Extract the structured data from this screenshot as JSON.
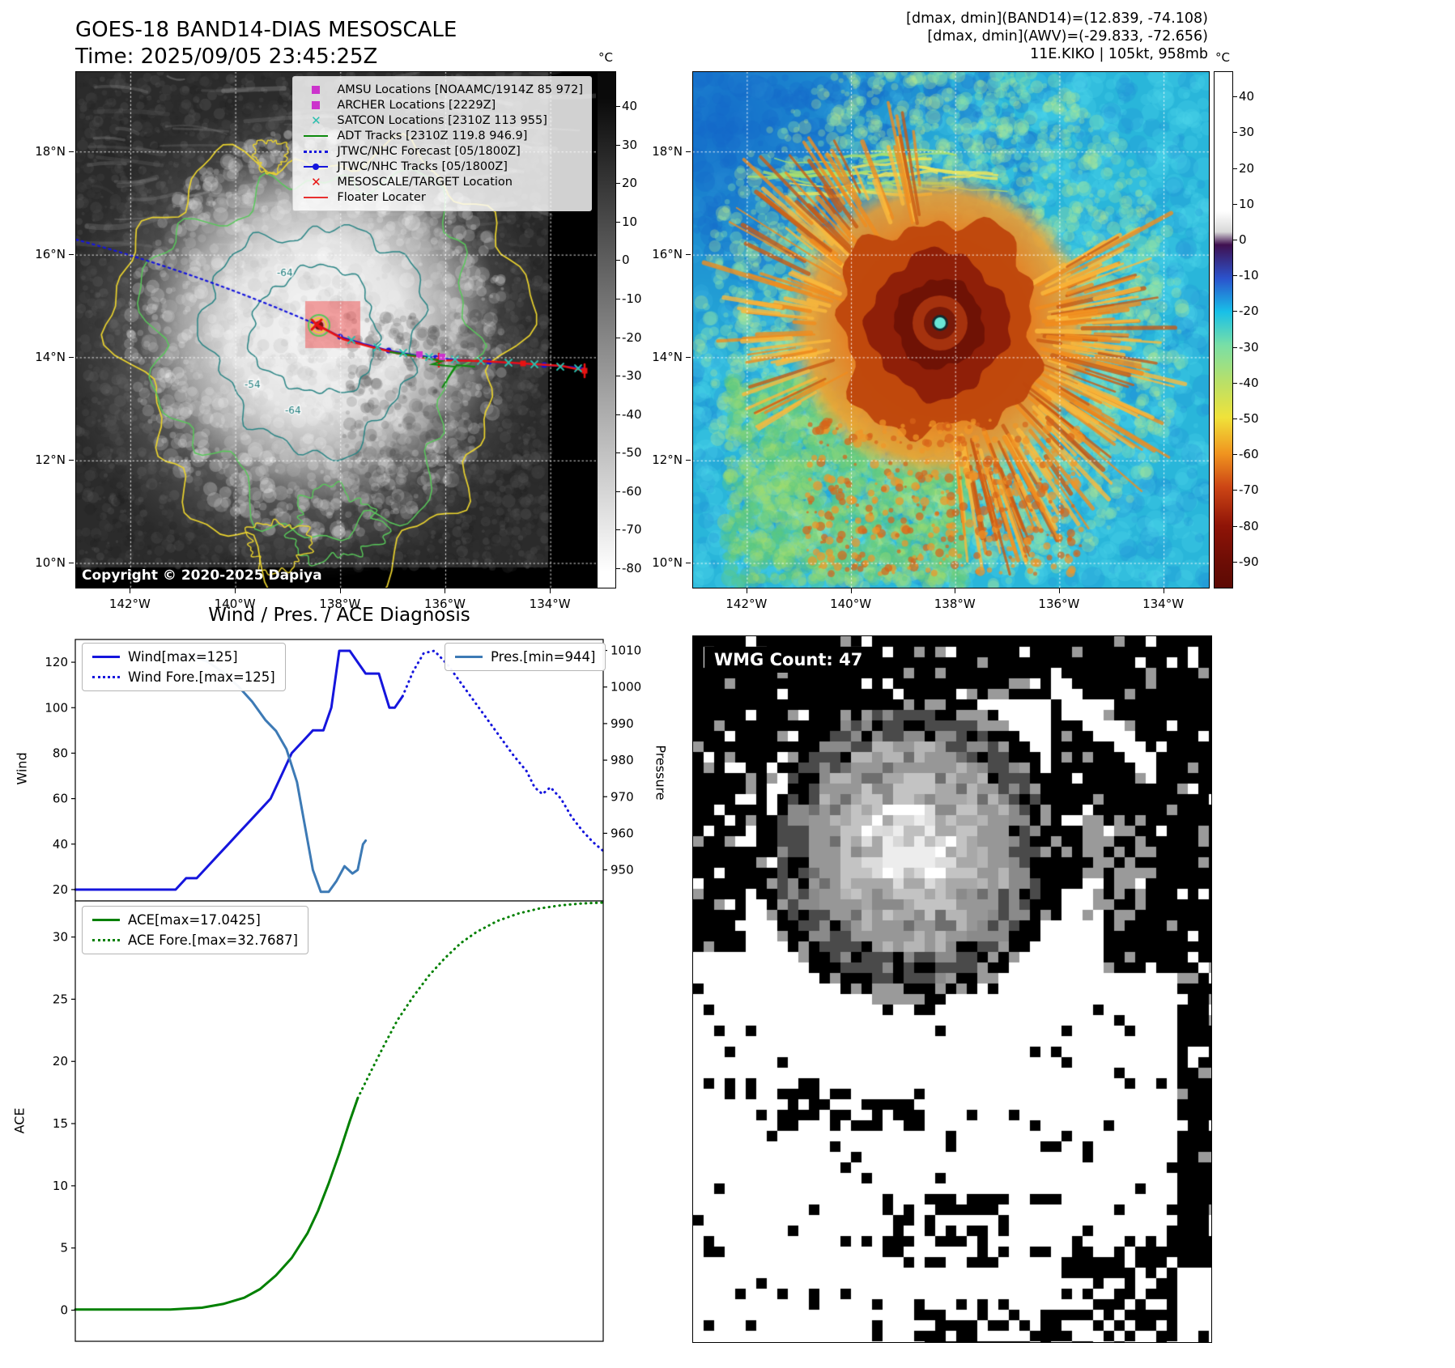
{
  "band14_panel": {
    "title_line1": "GOES-18 BAND14-DIAS MESOSCALE",
    "title_line2": "Time: 2025/09/05 23:45:25Z",
    "copyright": "Copyright © 2020-2025 Dapiya",
    "legend_items": [
      {
        "marker": "square",
        "color": "#cc33cc",
        "label": "AMSU Locations [NOAAMC/1914Z 85 972]"
      },
      {
        "marker": "square",
        "color": "#cc33cc",
        "label": "ARCHER Locations [2229Z]"
      },
      {
        "marker": "x",
        "color": "#2bbfae",
        "label": "SATCON Locations [2310Z 113 955]"
      },
      {
        "marker": "line",
        "color": "#0d8a0d",
        "label": "ADT Tracks [2310Z 119.8 946.9]"
      },
      {
        "marker": "dotted",
        "color": "#1515dd",
        "label": "JTWC/NHC Forecast [05/1800Z]"
      },
      {
        "marker": "line-dot",
        "color": "#1515dd",
        "label": "JTWC/NHC Tracks [05/1800Z]"
      },
      {
        "marker": "x",
        "color": "#e81212",
        "label": "MESOSCALE/TARGET Location"
      },
      {
        "marker": "line",
        "color": "#e83030",
        "label": "Floater Locater"
      }
    ],
    "x_tick_labels": [
      "142°W",
      "140°W",
      "138°W",
      "136°W",
      "134°W"
    ],
    "y_tick_labels": [
      "18°N",
      "16°N",
      "14°N",
      "12°N",
      "10°N"
    ],
    "contour_labels": [
      "-64",
      "-54",
      "-64"
    ],
    "colorbar": {
      "unit": "°C",
      "tick_values": [
        40,
        30,
        20,
        10,
        0,
        -10,
        -20,
        -30,
        -40,
        -50,
        -60,
        -70,
        -80
      ]
    }
  },
  "awv_panel": {
    "header_line1": "[dmax, dmin](BAND14)=(12.839, -74.108)",
    "header_line2": "[dmax, dmin](AWV)=(-29.833, -72.656)",
    "header_line3": "11E.KIKO | 105kt, 958mb",
    "x_tick_labels": [
      "142°W",
      "140°W",
      "138°W",
      "136°W",
      "134°W"
    ],
    "y_tick_labels": [
      "18°N",
      "16°N",
      "14°N",
      "12°N",
      "10°N"
    ],
    "colorbar": {
      "unit": "°C",
      "tick_values": [
        40,
        30,
        20,
        10,
        0,
        -10,
        -20,
        -30,
        -40,
        -50,
        -60,
        -70,
        -80,
        -90
      ]
    }
  },
  "wmg_panel": {
    "label": "WMG Count: 47"
  },
  "diagnosis": {
    "title": "Wind / Pres. / ACE Diagnosis",
    "ylabel_wind": "Wind",
    "ylabel_pressure": "Pressure",
    "ylabel_ace": "ACE"
  },
  "chart_data": [
    {
      "type": "line",
      "title": "Wind / Pres. / ACE Diagnosis (upper panel)",
      "xlabel": "",
      "ylabel": "Wind",
      "ylabel_right": "Pressure",
      "xlim": [
        0,
        100
      ],
      "ylim_left": [
        15,
        130
      ],
      "yticks_left": [
        20,
        40,
        60,
        80,
        100,
        120
      ],
      "ylim_right": [
        941.5,
        1013
      ],
      "yticks_right": [
        950,
        960,
        970,
        980,
        990,
        1000,
        1010
      ],
      "grid": false,
      "legend_position": "upper left / upper right",
      "series": [
        {
          "name": "Wind[max=125]",
          "axis": "left",
          "style": "solid",
          "color": "#1515dd",
          "x": [
            0,
            14,
            19,
            21,
            23,
            25,
            27,
            29,
            31,
            33,
            35,
            37,
            39,
            41,
            43,
            45,
            47,
            48.5,
            50,
            52,
            53.5,
            55,
            57.5,
            59.5,
            60.5,
            62
          ],
          "y": [
            20,
            20,
            20,
            25,
            25,
            30,
            35,
            40,
            45,
            50,
            55,
            60,
            70,
            80,
            85,
            90,
            90,
            100,
            125,
            125,
            120,
            115,
            115,
            100,
            100,
            105
          ]
        },
        {
          "name": "Wind Fore.[max=125]",
          "axis": "left",
          "style": "dotted",
          "color": "#1515dd",
          "x": [
            62,
            64,
            66,
            68,
            70.5,
            73,
            75.5,
            78,
            80.5,
            83,
            85.5,
            87,
            88.5,
            90,
            92,
            94,
            96,
            98,
            100
          ],
          "y": [
            105,
            116,
            124,
            125,
            119,
            111,
            103,
            95,
            87,
            79,
            72,
            65,
            62,
            65,
            60,
            52,
            46,
            41,
            37
          ]
        },
        {
          "name": "Pres.[min=944]",
          "axis": "right",
          "style": "solid",
          "color": "#3d7ab5",
          "x": [
            19,
            22,
            25,
            28,
            31,
            33.5,
            36,
            38,
            40,
            42,
            43.5,
            45,
            46.5,
            48,
            49.5,
            51,
            52.5,
            53.5,
            54.5,
            55
          ],
          "y": [
            1009,
            1008.5,
            1007,
            1004,
            1000,
            996,
            991,
            988,
            983,
            974,
            962,
            950,
            944,
            944,
            947,
            951,
            949,
            950,
            957,
            958
          ]
        }
      ]
    },
    {
      "type": "line",
      "title": "ACE diagnosis (lower panel)",
      "xlabel": "",
      "ylabel": "ACE",
      "xlim": [
        0,
        100
      ],
      "ylim_left": [
        -2.5,
        32.9
      ],
      "yticks_left": [
        0,
        5,
        10,
        15,
        20,
        25,
        30
      ],
      "grid": false,
      "legend_position": "upper left",
      "series": [
        {
          "name": "ACE[max=17.0425]",
          "axis": "left",
          "style": "solid",
          "color": "#008000",
          "x": [
            0,
            18,
            24,
            28,
            32,
            35,
            38,
            41,
            44,
            46,
            48,
            50,
            52,
            53.5
          ],
          "y": [
            0.05,
            0.05,
            0.2,
            0.5,
            1,
            1.7,
            2.8,
            4.2,
            6.2,
            8,
            10.2,
            12.6,
            15.2,
            17.04
          ]
        },
        {
          "name": "ACE Fore.[max=32.7687]",
          "axis": "left",
          "style": "dotted",
          "color": "#008000",
          "x": [
            53.5,
            56,
            58.5,
            61,
            64,
            67,
            70,
            73,
            76,
            80,
            84,
            88,
            92,
            96,
            100
          ],
          "y": [
            17.04,
            19.2,
            21.3,
            23.3,
            25.2,
            26.9,
            28.3,
            29.5,
            30.4,
            31.3,
            31.9,
            32.3,
            32.55,
            32.7,
            32.77
          ]
        }
      ]
    }
  ]
}
